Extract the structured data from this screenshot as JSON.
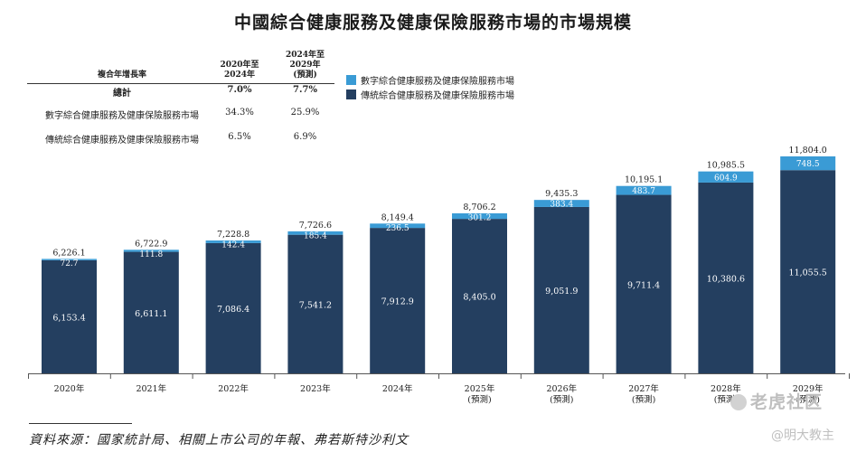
{
  "title": "中國綜合健康服務及健康保險服務市場的市場規模",
  "cagr_table": {
    "header_label": "複合年增長率",
    "col1": [
      "2020年至",
      "2024年"
    ],
    "col2": [
      "2024年至",
      "2029年",
      "(預測)"
    ],
    "rows": [
      {
        "label": "總計",
        "v1": "7.0%",
        "v2": "7.7%"
      },
      {
        "label": "數字綜合健康服務及健康保險服務市場",
        "v1": "34.3%",
        "v2": "25.9%"
      },
      {
        "label": "傳統綜合健康服務及健康保險服務市場",
        "v1": "6.5%",
        "v2": "6.9%"
      }
    ]
  },
  "legend": {
    "digital": "數字綜合健康服務及健康保險服務市場",
    "traditional": "傳統綜合健康服務及健康保險服務市場"
  },
  "colors": {
    "digital": "#3a9bd5",
    "traditional": "#243f60",
    "axis": "#555555"
  },
  "chart_data": {
    "type": "bar",
    "stacked": true,
    "title": "中國綜合健康服務及健康保險服務市場的市場規模",
    "categories": [
      "2020年",
      "2021年",
      "2022年",
      "2023年",
      "2024年",
      "2025年",
      "2026年",
      "2027年",
      "2028年",
      "2029年"
    ],
    "category_sublabels": [
      "",
      "",
      "",
      "",
      "",
      "(預測)",
      "(預測)",
      "(預測)",
      "(預測)",
      "(預測)"
    ],
    "series": [
      {
        "name": "傳統綜合健康服務及健康保險服務市場",
        "values": [
          6153.4,
          6611.1,
          7086.4,
          7541.2,
          7912.9,
          8405.0,
          9051.9,
          9711.4,
          10380.6,
          11055.5
        ],
        "labels": [
          "6,153.4",
          "6,611.1",
          "7,086.4",
          "7,541.2",
          "7,912.9",
          "8,405.0",
          "9,051.9",
          "9,711.4",
          "10,380.6",
          "11,055.5"
        ]
      },
      {
        "name": "數字綜合健康服務及健康保險服務市場",
        "values": [
          72.7,
          111.8,
          142.4,
          185.4,
          236.5,
          301.2,
          383.4,
          483.7,
          604.9,
          748.5
        ],
        "labels": [
          "72.7",
          "111.8",
          "142.4",
          "185.4",
          "236.5",
          "301.2",
          "383.4",
          "483.7",
          "604.9",
          "748.5"
        ]
      }
    ],
    "totals": [
      6226.1,
      6722.9,
      7228.8,
      7726.6,
      8149.4,
      8706.2,
      9435.3,
      10195.1,
      10985.5,
      11804.0
    ],
    "total_labels": [
      "6,226.1",
      "6,722.9",
      "7,228.8",
      "7,726.6",
      "8,149.4",
      "8,706.2",
      "9,435.3",
      "10,195.1",
      "10,985.5",
      "11,804.0"
    ],
    "ylim": [
      0,
      11804.0
    ],
    "xlabel": "",
    "ylabel": ""
  },
  "source": "資料來源：國家統計局、相關上市公司的年報、弗若斯特沙利文",
  "watermark": {
    "brand": "老虎社区",
    "user": "@明大教主"
  }
}
